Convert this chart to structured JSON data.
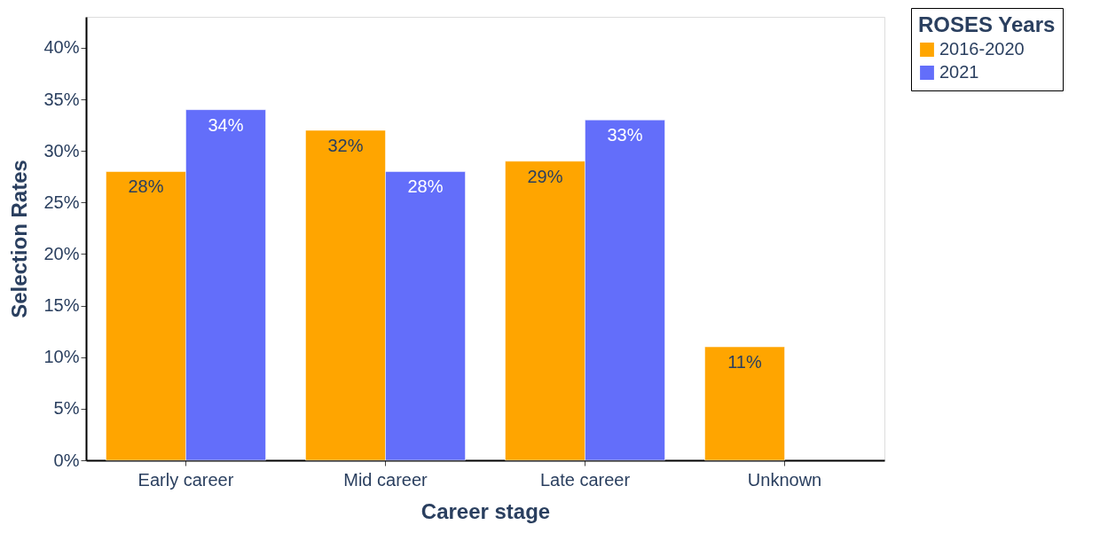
{
  "chart_data": {
    "type": "bar",
    "xlabel": "Career stage",
    "ylabel": "Selection Rates",
    "legend_title": "ROSES Years",
    "categories": [
      "Early career",
      "Mid career",
      "Late career",
      "Unknown"
    ],
    "series": [
      {
        "name": "2016-2020",
        "color": "#ffa500",
        "values": [
          28,
          32,
          29,
          11
        ],
        "value_labels": [
          "28%",
          "32%",
          "29%",
          "11%"
        ]
      },
      {
        "name": "2021",
        "color": "#636efa",
        "values": [
          34,
          28,
          33,
          null
        ],
        "value_labels": [
          "34%",
          "28%",
          "33%",
          null
        ]
      }
    ],
    "ylim": [
      0,
      43
    ],
    "yticks": [
      {
        "value": 0,
        "label": "0%"
      },
      {
        "value": 5,
        "label": "5%"
      },
      {
        "value": 10,
        "label": "10%"
      },
      {
        "value": 15,
        "label": "15%"
      },
      {
        "value": 20,
        "label": "20%"
      },
      {
        "value": 25,
        "label": "25%"
      },
      {
        "value": 30,
        "label": "30%"
      },
      {
        "value": 35,
        "label": "35%"
      },
      {
        "value": 40,
        "label": "40%"
      }
    ],
    "grid": false,
    "legend": "top right"
  }
}
